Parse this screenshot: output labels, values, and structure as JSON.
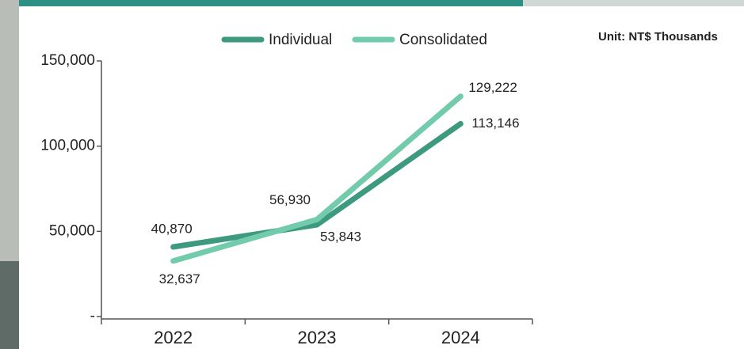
{
  "chart_data": {
    "type": "line",
    "unit_note": "Unit: NT$ Thousands",
    "categories": [
      "2022",
      "2023",
      "2024"
    ],
    "series": [
      {
        "name": "Individual",
        "color": "#3d9a7f",
        "values": [
          40870,
          53843,
          113146
        ],
        "value_labels": [
          "40,870",
          "53,843",
          "113,146"
        ]
      },
      {
        "name": "Consolidated",
        "color": "#72cbaa",
        "values": [
          32637,
          56930,
          129222
        ],
        "value_labels": [
          "32,637",
          "56,930",
          "129,222"
        ]
      }
    ],
    "ylim": [
      0,
      150000
    ],
    "yticks": [
      {
        "value": 0,
        "label": "-"
      },
      {
        "value": 50000,
        "label": "50,000"
      },
      {
        "value": 100000,
        "label": "100,000"
      },
      {
        "value": 150000,
        "label": "150,000"
      }
    ],
    "legend": "top"
  }
}
